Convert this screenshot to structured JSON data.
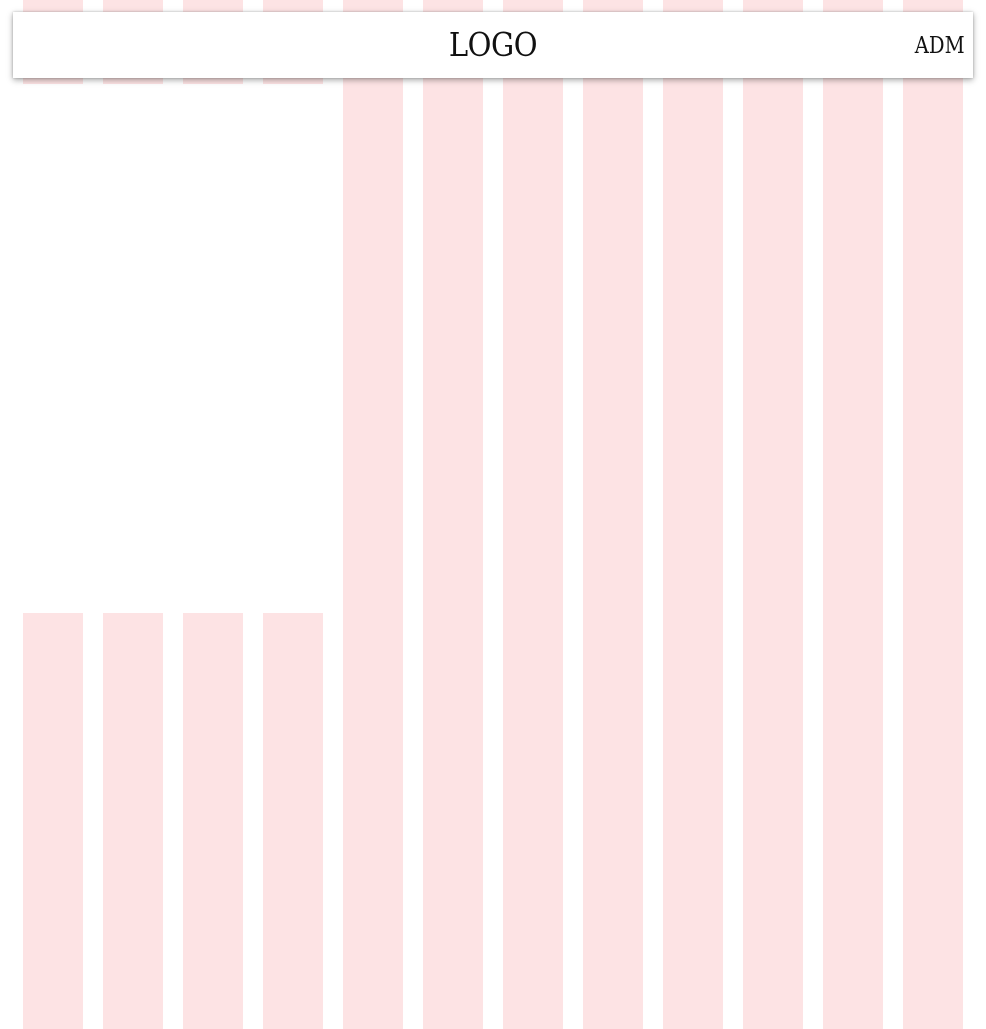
{
  "header": {
    "logo_text": "LOGO",
    "account_label": "ADM"
  },
  "colors": {
    "column_fill": "#fde3e4",
    "background": "#ffffff",
    "header_background": "#ffffff",
    "text": "#111111"
  }
}
